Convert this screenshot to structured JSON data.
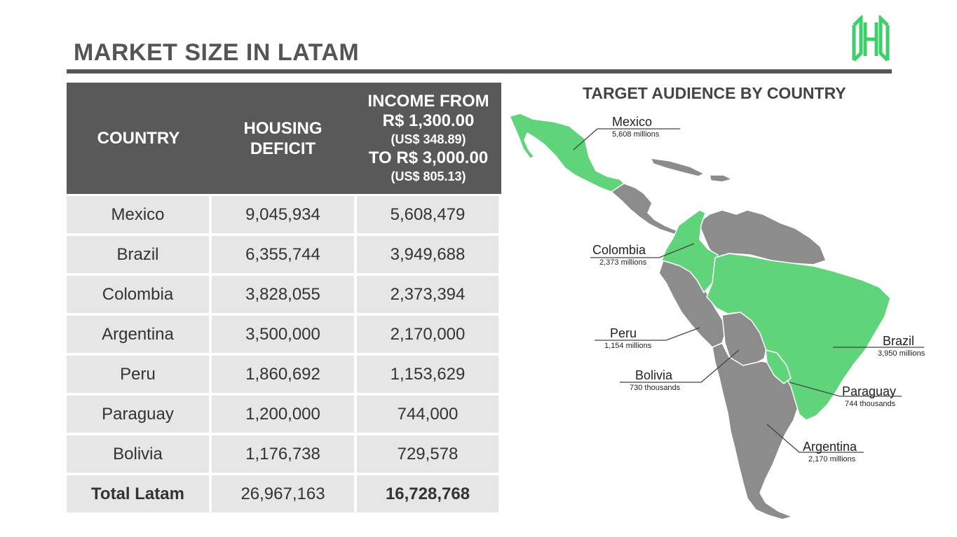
{
  "page": {
    "title": "MARKET SIZE IN LATAM"
  },
  "table": {
    "headers": {
      "country": "COUNTRY",
      "deficit_line1": "HOUSING",
      "deficit_line2": "DEFICIT",
      "income_line1": "INCOME FROM",
      "income_line2": "R$ 1,300.00",
      "income_line3": "(US$ 348.89)",
      "income_line4": "TO R$ 3,000.00",
      "income_line5": "(US$ 805.13)"
    },
    "rows": [
      {
        "country": "Mexico",
        "deficit": "9,045,934",
        "income": "5,608,479"
      },
      {
        "country": "Brazil",
        "deficit": "6,355,744",
        "income": "3,949,688"
      },
      {
        "country": "Colombia",
        "deficit": "3,828,055",
        "income": "2,373,394"
      },
      {
        "country": "Argentina",
        "deficit": "3,500,000",
        "income": "2,170,000"
      },
      {
        "country": "Peru",
        "deficit": "1,860,692",
        "income": "1,153,629"
      },
      {
        "country": "Paraguay",
        "deficit": "1,200,000",
        "income": "744,000"
      },
      {
        "country": "Bolivia",
        "deficit": "1,176,738",
        "income": "729,578"
      },
      {
        "country": "Total Latam",
        "deficit": "26,967,163",
        "income": "16,728,768"
      }
    ]
  },
  "map": {
    "title": "TARGET AUDIENCE BY COUNTRY",
    "labels": {
      "mexico": {
        "name": "Mexico",
        "value": "5,608 millions"
      },
      "colombia": {
        "name": "Colombia",
        "value": "2,373 millions"
      },
      "peru": {
        "name": "Peru",
        "value": "1,154 millions"
      },
      "bolivia": {
        "name": "Bolivia",
        "value": "730 thousands"
      },
      "brazil": {
        "name": "Brazil",
        "value": "3,950 millions"
      },
      "paraguay": {
        "name": "Paraguay",
        "value": "744 thousands"
      },
      "argentina": {
        "name": "Argentina",
        "value": "2,170 millions"
      }
    },
    "colors": {
      "target": "#5fd47a",
      "other": "#8c8c8c",
      "border": "#ffffff"
    }
  },
  "logo": {
    "icon": "building-h-logo-icon",
    "color": "#3ecf6a"
  }
}
